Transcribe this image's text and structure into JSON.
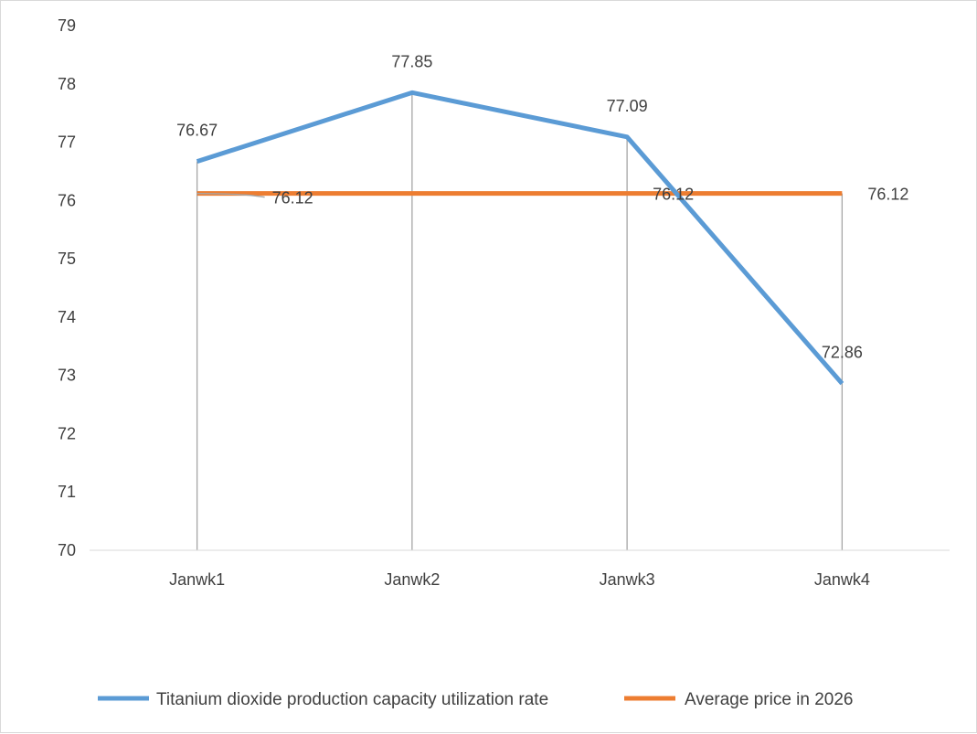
{
  "chart_data": {
    "type": "line",
    "title": "",
    "xlabel": "",
    "ylabel": "",
    "categories": [
      "Janwk1",
      "Janwk2",
      "Janwk3",
      "Janwk4"
    ],
    "ylim": [
      70,
      79
    ],
    "yticks": [
      70,
      71,
      72,
      73,
      74,
      75,
      76,
      77,
      78,
      79
    ],
    "grid": false,
    "drop_lines": true,
    "legend_position": "bottom",
    "series": [
      {
        "name": "Titanium dioxide production capacity utilization rate",
        "values": [
          76.67,
          77.85,
          77.09,
          72.86
        ],
        "labels": [
          "76.67",
          "77.85",
          "77.09",
          "72.86"
        ],
        "color": "#5b9bd5"
      },
      {
        "name": "Average price in 2026",
        "values": [
          76.12,
          76.12,
          76.12,
          76.12
        ],
        "labels": [
          "76.12",
          "",
          "76.12",
          "76.12"
        ],
        "color": "#ed7d31"
      }
    ]
  }
}
